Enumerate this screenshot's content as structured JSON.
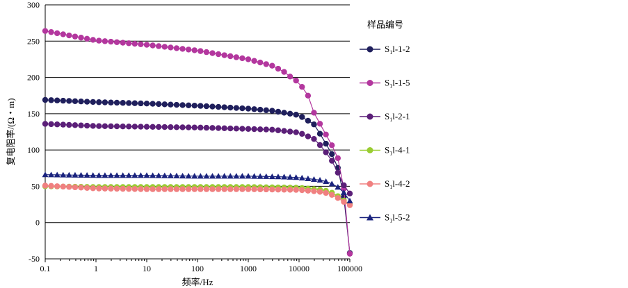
{
  "chart_data": {
    "type": "line",
    "xlabel": "频率/Hz",
    "ylabel": "复电阻率/(Ω・m)",
    "x_scale": "log",
    "xlim": [
      0.1,
      100000
    ],
    "ylim": [
      -50,
      300
    ],
    "x_ticks": [
      "0.1",
      "1",
      "10",
      "100",
      "1000",
      "10000",
      "100000"
    ],
    "y_ticks": [
      "-50",
      "0",
      "50",
      "100",
      "150",
      "200",
      "250",
      "300"
    ],
    "grid": "horizontal",
    "legend": {
      "title": "样品编号",
      "placement": "right"
    },
    "series": [
      {
        "name": "S1l-1-2",
        "name_main": "S",
        "name_sub": "1",
        "name_rest": "l-1-2",
        "color": "#1f1f5c",
        "marker": "circle",
        "x": [
          0.1,
          1,
          10,
          100,
          1000,
          3000,
          10000,
          20000,
          30000,
          50000,
          70000,
          100000
        ],
        "y": [
          169,
          166,
          164,
          161,
          157,
          154,
          148,
          135,
          115,
          88,
          60,
          -42
        ]
      },
      {
        "name": "S1l-1-5",
        "name_main": "S",
        "name_sub": "1",
        "name_rest": "l-1-5",
        "color": "#b3379e",
        "marker": "circle",
        "x": [
          0.1,
          1,
          10,
          100,
          1000,
          3000,
          5000,
          7000,
          10000,
          15000,
          20000,
          30000,
          50000,
          70000,
          100000
        ],
        "y": [
          264,
          251,
          245,
          237,
          225,
          216,
          208,
          200,
          193,
          175,
          150,
          128,
          100,
          75,
          -43
        ]
      },
      {
        "name": "S1l-2-1",
        "name_main": "S",
        "name_sub": "1",
        "name_rest": "l-2-1",
        "color": "#5b1f78",
        "marker": "circle",
        "x": [
          0.1,
          1,
          10,
          100,
          1000,
          3000,
          10000,
          20000,
          30000,
          50000,
          70000,
          100000
        ],
        "y": [
          136,
          133,
          132,
          131,
          129,
          128,
          124,
          115,
          102,
          80,
          55,
          40
        ]
      },
      {
        "name": "S1l-4-1",
        "name_main": "S",
        "name_sub": "1",
        "name_rest": "l-4-1",
        "color": "#9acd32",
        "marker": "circle",
        "x": [
          0.1,
          1,
          10,
          100,
          1000,
          10000,
          30000,
          50000,
          70000,
          100000
        ],
        "y": [
          50,
          49,
          49,
          49,
          49,
          48,
          45,
          40,
          32,
          25
        ]
      },
      {
        "name": "S1l-4-2",
        "name_main": "S",
        "name_sub": "1",
        "name_rest": "l-4-2",
        "color": "#f08080",
        "marker": "circle",
        "x": [
          0.1,
          1,
          10,
          100,
          1000,
          10000,
          30000,
          50000,
          70000,
          100000
        ],
        "y": [
          51,
          47,
          46,
          46,
          46,
          45,
          42,
          37,
          30,
          24
        ]
      },
      {
        "name": "S1l-5-2",
        "name_main": "S",
        "name_sub": "1",
        "name_rest": "l-5-2",
        "color": "#1a237e",
        "marker": "triangle",
        "x": [
          0.1,
          1,
          10,
          100,
          1000,
          5000,
          10000,
          30000,
          50000,
          70000,
          100000
        ],
        "y": [
          66,
          65,
          65,
          64,
          64,
          63,
          62,
          58,
          52,
          45,
          30
        ]
      }
    ]
  }
}
